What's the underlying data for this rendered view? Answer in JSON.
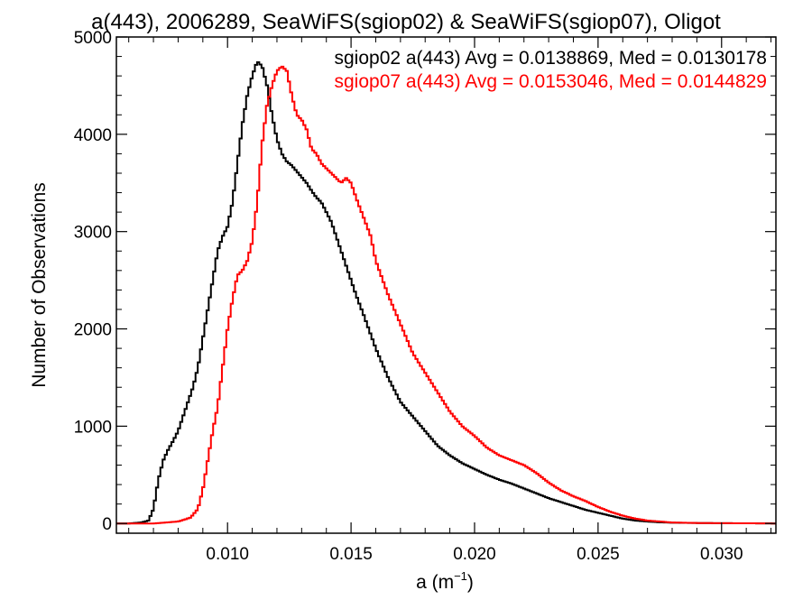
{
  "chart_data": {
    "type": "line",
    "title": "a(443), 2006289, SeaWiFS(sgiop02) & SeaWiFS(sgiop07), Oligot",
    "xlabel_main": "a (m",
    "xlabel_sup": "−1",
    "xlabel_close": ")",
    "ylabel": "Number of Observations",
    "xlim": [
      0.0055,
      0.0322
    ],
    "ylim": [
      -100,
      5000
    ],
    "xticks": [
      0.01,
      0.015,
      0.02,
      0.025,
      0.03
    ],
    "xtick_labels": [
      "0.010",
      "0.015",
      "0.020",
      "0.025",
      "0.030"
    ],
    "yticks": [
      0,
      1000,
      2000,
      3000,
      4000,
      5000
    ],
    "ytick_labels": [
      "0",
      "1000",
      "2000",
      "3000",
      "4000",
      "5000"
    ],
    "legend_placement": "top-right",
    "series": [
      {
        "name": "sgiop02 a(443) Avg = 0.0138869, Med = 0.0130178",
        "color": "#000000",
        "x": [
          0.0055,
          0.006,
          0.0065,
          0.0068,
          0.007,
          0.0072,
          0.0074,
          0.0076,
          0.0078,
          0.008,
          0.0082,
          0.0084,
          0.0086,
          0.0088,
          0.009,
          0.0092,
          0.0094,
          0.0096,
          0.0098,
          0.01,
          0.0102,
          0.0104,
          0.0106,
          0.0108,
          0.011,
          0.0112,
          0.0114,
          0.0116,
          0.0118,
          0.012,
          0.0122,
          0.0124,
          0.0126,
          0.0128,
          0.013,
          0.0132,
          0.0134,
          0.0136,
          0.0138,
          0.014,
          0.0142,
          0.0144,
          0.0146,
          0.0148,
          0.015,
          0.0152,
          0.0155,
          0.016,
          0.0165,
          0.017,
          0.0175,
          0.018,
          0.0185,
          0.019,
          0.0195,
          0.02,
          0.0205,
          0.021,
          0.0215,
          0.022,
          0.0225,
          0.023,
          0.0235,
          0.024,
          0.0245,
          0.025,
          0.0255,
          0.026,
          0.0265,
          0.027,
          0.0275,
          0.028,
          0.029,
          0.03,
          0.031,
          0.0322
        ],
        "y": [
          0,
          0,
          10,
          30,
          150,
          450,
          650,
          760,
          850,
          950,
          1100,
          1250,
          1400,
          1600,
          1900,
          2200,
          2500,
          2800,
          2950,
          3050,
          3300,
          3700,
          4100,
          4400,
          4600,
          4750,
          4700,
          4500,
          4200,
          3950,
          3800,
          3720,
          3680,
          3620,
          3560,
          3500,
          3420,
          3350,
          3300,
          3200,
          3100,
          2950,
          2800,
          2650,
          2500,
          2350,
          2150,
          1800,
          1500,
          1250,
          1100,
          950,
          800,
          700,
          620,
          560,
          500,
          450,
          410,
          360,
          310,
          260,
          220,
          180,
          140,
          110,
          80,
          50,
          30,
          20,
          12,
          8,
          5,
          3,
          2,
          0
        ]
      },
      {
        "name": "sgiop07 a(443) Avg = 0.0153046, Med = 0.0144829",
        "color": "#ff0000",
        "x": [
          0.0055,
          0.007,
          0.008,
          0.0085,
          0.0088,
          0.009,
          0.0092,
          0.0094,
          0.0096,
          0.0098,
          0.01,
          0.0102,
          0.0104,
          0.0106,
          0.0108,
          0.011,
          0.0112,
          0.0114,
          0.0116,
          0.0118,
          0.012,
          0.0122,
          0.0124,
          0.0126,
          0.0128,
          0.013,
          0.0132,
          0.0134,
          0.0136,
          0.0138,
          0.014,
          0.0142,
          0.0144,
          0.0146,
          0.0148,
          0.015,
          0.0152,
          0.0155,
          0.0158,
          0.016,
          0.0165,
          0.017,
          0.0175,
          0.018,
          0.0185,
          0.019,
          0.0195,
          0.02,
          0.0205,
          0.021,
          0.0215,
          0.022,
          0.0225,
          0.023,
          0.0235,
          0.024,
          0.0245,
          0.025,
          0.0255,
          0.026,
          0.0265,
          0.027,
          0.0275,
          0.028,
          0.029,
          0.03,
          0.031,
          0.0322
        ],
        "y": [
          0,
          0,
          20,
          60,
          150,
          350,
          650,
          950,
          1200,
          1600,
          2000,
          2300,
          2550,
          2600,
          2700,
          2900,
          3300,
          3900,
          4300,
          4500,
          4650,
          4700,
          4650,
          4400,
          4200,
          4150,
          4050,
          3850,
          3800,
          3700,
          3650,
          3600,
          3550,
          3500,
          3550,
          3500,
          3350,
          3150,
          2950,
          2700,
          2350,
          2050,
          1750,
          1550,
          1350,
          1150,
          1000,
          900,
          780,
          700,
          650,
          600,
          520,
          420,
          340,
          280,
          230,
          170,
          120,
          80,
          50,
          30,
          20,
          10,
          5,
          3,
          2,
          0
        ]
      }
    ]
  }
}
